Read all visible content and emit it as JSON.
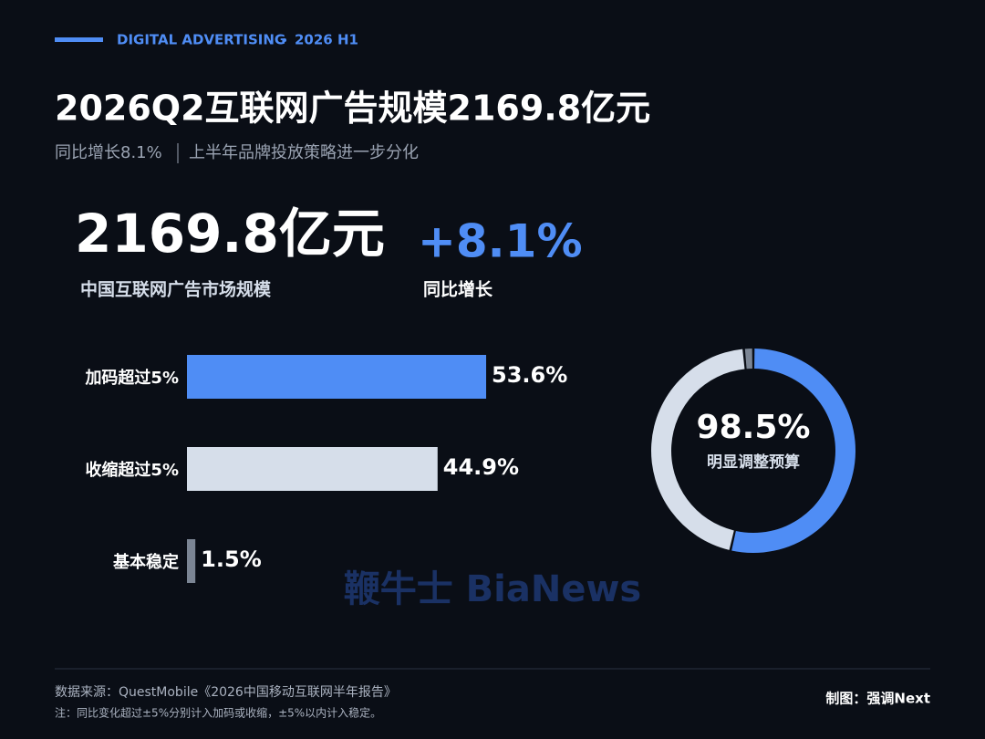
{
  "header": {
    "kicker": "DIGITAL ADVERTISING",
    "period": "2026 H1",
    "title": "2026Q2互联网广告规模2169.8亿元",
    "subtitle_left": "同比增长8.1%",
    "subtitle_right": "上半年品牌投放策略进一步分化"
  },
  "kpis": [
    {
      "value": "2169.8亿元",
      "label": "中国互联网广告市场规模"
    },
    {
      "value": "+8.1%",
      "label": "同比增长"
    }
  ],
  "chart_data": [
    {
      "type": "bar",
      "categories": [
        "加码超过5%",
        "收缩超过5%",
        "基本稳定"
      ],
      "values": [
        53.6,
        44.9,
        1.5
      ],
      "value_labels": [
        "53.6%",
        "44.9%",
        "1.5%"
      ],
      "colors": [
        "#4f8df5",
        "#d6deea",
        "#7b8594"
      ],
      "xlim": [
        0,
        100
      ]
    },
    {
      "type": "donut",
      "values": [
        53.6,
        44.9,
        1.5
      ],
      "colors": [
        "#4f8df5",
        "#d6deea",
        "#7b8594"
      ],
      "center_value": "98.5%",
      "center_label": "明显调整预算"
    }
  ],
  "watermark": "鞭牛士 BiaNews",
  "footer": {
    "source": "数据来源：QuestMobile《2026中国移动互联网半年报告》",
    "note": "注：同比变化超过±5%分别计入加码或收缩，±5%以内计入稳定。",
    "credit": "制图：强调Next"
  }
}
